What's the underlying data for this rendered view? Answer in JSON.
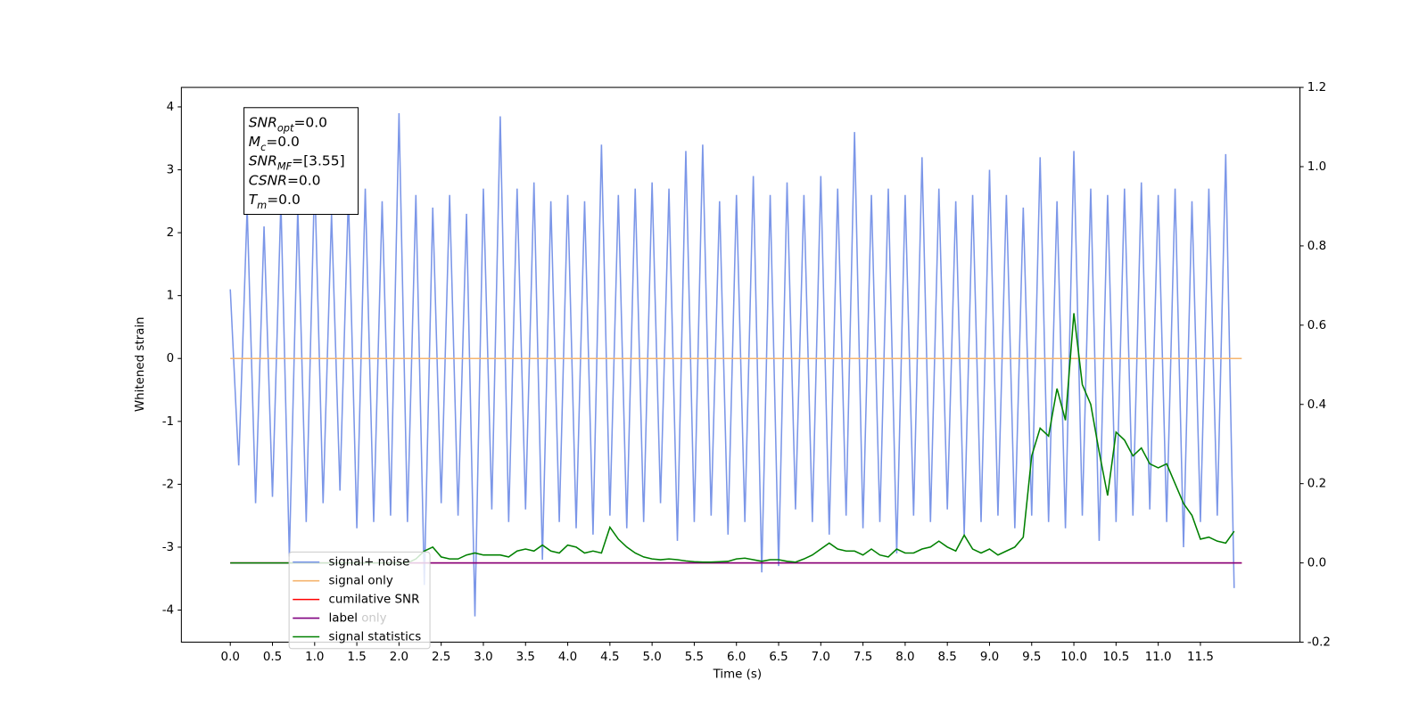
{
  "chart_data": {
    "type": "line",
    "xlabel": "Time (s)",
    "ylabel": "Whitened strain",
    "xlim": [
      -0.58,
      12.68
    ],
    "ylim": [
      -4.51,
      4.31
    ],
    "y2lim": [
      -0.2,
      1.2
    ],
    "xticks": [
      {
        "value": 0,
        "label": "0.0"
      },
      {
        "value": 0.5,
        "label": "0.5"
      },
      {
        "value": 1,
        "label": "1.0"
      },
      {
        "value": 1.5,
        "label": "1.5"
      },
      {
        "value": 2,
        "label": "2.0"
      },
      {
        "value": 2.5,
        "label": "2.5"
      },
      {
        "value": 3,
        "label": "3.0"
      },
      {
        "value": 3.5,
        "label": "3.5"
      },
      {
        "value": 4,
        "label": "4.0"
      },
      {
        "value": 4.5,
        "label": "4.5"
      },
      {
        "value": 5,
        "label": "5.0"
      },
      {
        "value": 5.5,
        "label": "5.5"
      },
      {
        "value": 6,
        "label": "6.0"
      },
      {
        "value": 6.5,
        "label": "6.5"
      },
      {
        "value": 7,
        "label": "7.0"
      },
      {
        "value": 7.5,
        "label": "7.5"
      },
      {
        "value": 8,
        "label": "8.0"
      },
      {
        "value": 8.5,
        "label": "8.5"
      },
      {
        "value": 9,
        "label": "9.0"
      },
      {
        "value": 9.5,
        "label": "9.5"
      },
      {
        "value": 10,
        "label": "10.0"
      },
      {
        "value": 10.5,
        "label": "10.5"
      },
      {
        "value": 11,
        "label": "11.0"
      },
      {
        "value": 11.5,
        "label": "11.5"
      }
    ],
    "yticks": [
      -4,
      -3,
      -2,
      -1,
      0,
      1,
      2,
      3,
      4
    ],
    "y2ticks": [
      -0.2,
      {
        "value": 0,
        "label": "0.0"
      },
      0.2,
      0.4,
      0.6,
      0.8,
      {
        "value": 1,
        "label": "1.0"
      },
      1.2
    ],
    "x": [
      0,
      0.1,
      0.2,
      0.3,
      0.4,
      0.5,
      0.6,
      0.7,
      0.8,
      0.9,
      1,
      1.1,
      1.2,
      1.3,
      1.4,
      1.5,
      1.6,
      1.7,
      1.8,
      1.9,
      2,
      2.1,
      2.2,
      2.3,
      2.4,
      2.5,
      2.6,
      2.7,
      2.8,
      2.9,
      3,
      3.1,
      3.2,
      3.3,
      3.4,
      3.5,
      3.6,
      3.7,
      3.8,
      3.9,
      4,
      4.1,
      4.2,
      4.3,
      4.4,
      4.5,
      4.6,
      4.7,
      4.8,
      4.9,
      5,
      5.1,
      5.2,
      5.3,
      5.4,
      5.5,
      5.6,
      5.7,
      5.8,
      5.9,
      6,
      6.1,
      6.2,
      6.3,
      6.4,
      6.5,
      6.6,
      6.7,
      6.8,
      6.9,
      7,
      7.1,
      7.2,
      7.3,
      7.4,
      7.5,
      7.6,
      7.7,
      7.8,
      7.9,
      8,
      8.1,
      8.2,
      8.3,
      8.4,
      8.5,
      8.6,
      8.7,
      8.8,
      8.9,
      9,
      9.1,
      9.2,
      9.3,
      9.4,
      9.5,
      9.6,
      9.7,
      9.8,
      9.9,
      10,
      10.1,
      10.2,
      10.3,
      10.4,
      10.5,
      10.6,
      10.7,
      10.8,
      10.9,
      11,
      11.1,
      11.2,
      11.3,
      11.4,
      11.5,
      11.6,
      11.7,
      11.8,
      11.9
    ],
    "series": [
      {
        "name": "signal+ noise",
        "color": "#7b96e8",
        "axis": "y",
        "values": [
          1.1,
          -1.7,
          2.4,
          -2.3,
          2.1,
          -2.2,
          2.5,
          -3.15,
          2.4,
          -2.6,
          2.9,
          -2.3,
          2.3,
          -2.1,
          2.6,
          -2.7,
          2.7,
          -2.6,
          2.5,
          -2.5,
          3.9,
          -2.6,
          2.6,
          -3.6,
          2.4,
          -2.3,
          2.6,
          -2.5,
          2.3,
          -4.1,
          2.7,
          -2.4,
          3.85,
          -2.6,
          2.7,
          -2.4,
          2.8,
          -3.2,
          2.5,
          -2.6,
          2.6,
          -2.7,
          2.5,
          -2.8,
          3.4,
          -2.5,
          2.6,
          -2.7,
          2.7,
          -2.6,
          2.8,
          -2.3,
          2.7,
          -2.9,
          3.3,
          -2.6,
          3.4,
          -2.5,
          2.5,
          -2.8,
          2.6,
          -2.6,
          2.9,
          -3.4,
          2.6,
          -3.3,
          2.8,
          -2.4,
          2.6,
          -2.6,
          2.9,
          -2.8,
          2.7,
          -2.5,
          3.6,
          -2.7,
          2.6,
          -2.6,
          2.7,
          -3.1,
          2.6,
          -2.5,
          3.2,
          -2.6,
          2.7,
          -2.4,
          2.5,
          -2.8,
          2.6,
          -2.6,
          3.0,
          -2.5,
          2.6,
          -2.7,
          2.4,
          -2.5,
          3.2,
          -2.6,
          2.5,
          -2.7,
          3.3,
          -2.5,
          2.7,
          -2.9,
          2.6,
          -2.6,
          2.7,
          -2.5,
          2.8,
          -2.4,
          2.6,
          -2.6,
          2.7,
          -3.0,
          2.5,
          -2.6,
          2.7,
          -2.5,
          3.25,
          -3.65
        ]
      },
      {
        "name": "signal only",
        "color": "#f5b46e",
        "axis": "y",
        "x": [
          0,
          11.99
        ],
        "values": [
          0,
          0
        ]
      },
      {
        "name": "cumilative SNR",
        "color": "#ff0000",
        "axis": "y2",
        "x": [
          0,
          11.99
        ],
        "values": [
          0,
          0
        ]
      },
      {
        "name": "label",
        "color": "#800080",
        "axis": "y2",
        "x": [
          0,
          11.99
        ],
        "values": [
          0,
          0
        ]
      },
      {
        "name": "signal statistics",
        "color": "#008000",
        "axis": "y2",
        "values": [
          0,
          0,
          0,
          0,
          0,
          0,
          0,
          0,
          0,
          0,
          0,
          0,
          0,
          0,
          0,
          0,
          0,
          0,
          0,
          0,
          0,
          0,
          0.01,
          0.03,
          0.04,
          0.015,
          0.01,
          0.01,
          0.02,
          0.025,
          0.02,
          0.02,
          0.02,
          0.015,
          0.03,
          0.035,
          0.03,
          0.045,
          0.03,
          0.025,
          0.045,
          0.04,
          0.025,
          0.03,
          0.025,
          0.09,
          0.06,
          0.04,
          0.025,
          0.015,
          0.01,
          0.008,
          0.01,
          0.008,
          0.005,
          0.003,
          0.002,
          0.002,
          0.003,
          0.004,
          0.01,
          0.012,
          0.008,
          0.004,
          0.008,
          0.008,
          0.004,
          0.002,
          0.01,
          0.02,
          0.035,
          0.05,
          0.035,
          0.03,
          0.03,
          0.02,
          0.035,
          0.02,
          0.015,
          0.035,
          0.025,
          0.025,
          0.035,
          0.04,
          0.055,
          0.04,
          0.03,
          0.07,
          0.035,
          0.025,
          0.035,
          0.02,
          0.03,
          0.04,
          0.065,
          0.27,
          0.34,
          0.32,
          0.44,
          0.36,
          0.63,
          0.45,
          0.4,
          0.28,
          0.17,
          0.33,
          0.31,
          0.27,
          0.29,
          0.25,
          0.24,
          0.25,
          0.2,
          0.15,
          0.12,
          0.06,
          0.065,
          0.055,
          0.05,
          0.08
        ]
      }
    ],
    "legend_overlap_text": "label only",
    "legend": "lower left",
    "annotation": {
      "lines": [
        {
          "base": "SNR",
          "sub": "opt",
          "rest": "=0.0"
        },
        {
          "base": "M",
          "sub": "c",
          "rest": "=0.0"
        },
        {
          "base": "SNR",
          "sub": "MF",
          "rest": "=[3.55]"
        },
        {
          "base": "CSNR",
          "sub": null,
          "rest": "=0.0"
        },
        {
          "base": "T",
          "sub": "m",
          "rest": "=0.0"
        }
      ]
    }
  }
}
